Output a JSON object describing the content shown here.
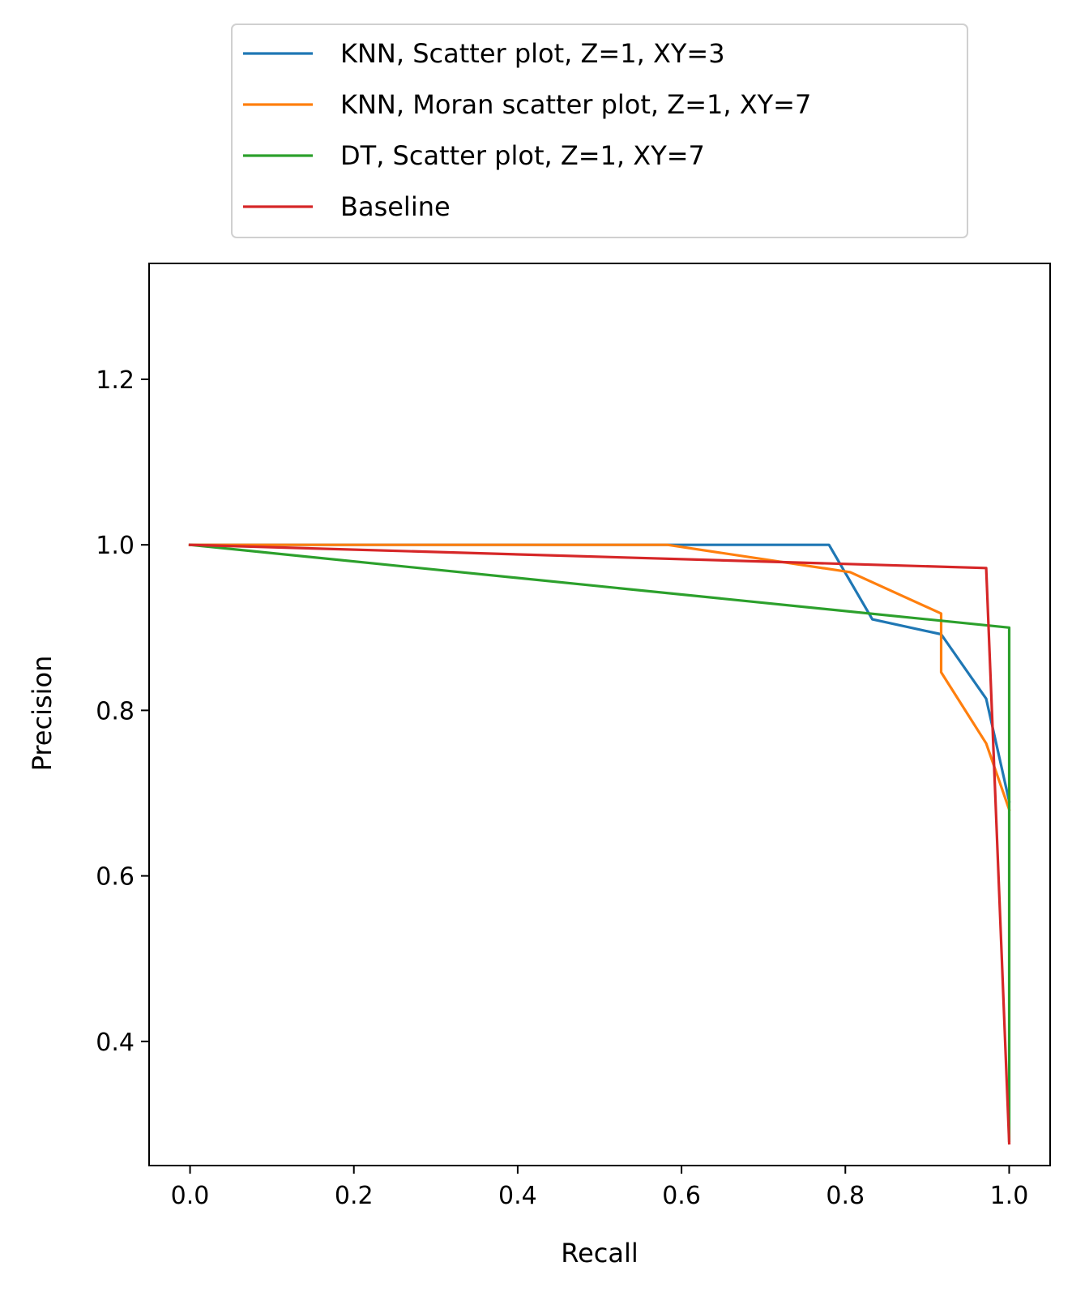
{
  "chart_data": {
    "type": "line",
    "title": "",
    "xlabel": "Recall",
    "ylabel": "Precision",
    "xlim": [
      -0.05,
      1.05
    ],
    "ylim": [
      0.25,
      1.34
    ],
    "xticks": [
      0.0,
      0.2,
      0.4,
      0.6,
      0.8,
      1.0
    ],
    "xtick_labels": [
      "0.0",
      "0.2",
      "0.4",
      "0.6",
      "0.8",
      "1.0"
    ],
    "yticks": [
      0.4,
      0.6,
      0.8,
      1.0,
      1.2
    ],
    "ytick_labels": [
      "0.4",
      "0.6",
      "0.8",
      "1.0",
      "1.2"
    ],
    "grid": false,
    "legend_position": "above-plot",
    "series": [
      {
        "name": "KNN, Scatter plot, Z=1, XY=3",
        "color": "#1f77b4",
        "x": [
          0.0,
          0.78,
          0.833,
          0.917,
          0.972,
          1.0
        ],
        "y": [
          1.0,
          1.0,
          0.91,
          0.892,
          0.814,
          0.69
        ]
      },
      {
        "name": "KNN, Moran scatter plot, Z=1, XY=7",
        "color": "#ff7f0e",
        "x": [
          0.0,
          0.583,
          0.806,
          0.917,
          0.917,
          0.972,
          1.0
        ],
        "y": [
          1.0,
          1.0,
          0.967,
          0.917,
          0.846,
          0.76,
          0.68
        ]
      },
      {
        "name": "DT, Scatter plot, Z=1, XY=7",
        "color": "#2ca02c",
        "x": [
          0.0,
          1.0,
          1.0
        ],
        "y": [
          1.0,
          0.9,
          0.28
        ]
      },
      {
        "name": "Baseline",
        "color": "#d62728",
        "x": [
          0.0,
          0.972,
          1.0
        ],
        "y": [
          1.0,
          0.972,
          0.277
        ]
      }
    ]
  }
}
